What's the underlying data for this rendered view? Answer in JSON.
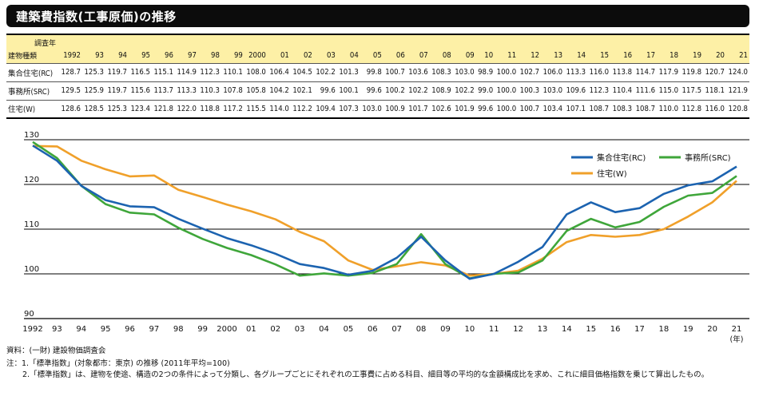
{
  "title": "建築費指数(工事原価)の推移",
  "table": {
    "corner_top": "調査年",
    "corner_bottom": "建物種類",
    "years": [
      "1992",
      "93",
      "94",
      "95",
      "96",
      "97",
      "98",
      "99",
      "2000",
      "01",
      "02",
      "03",
      "04",
      "05",
      "06",
      "07",
      "08",
      "09",
      "10",
      "11",
      "12",
      "13",
      "14",
      "15",
      "16",
      "17",
      "18",
      "19",
      "20",
      "21"
    ],
    "rows": [
      {
        "label": "集合住宅(RC)",
        "values": [
          "128.7",
          "125.3",
          "119.7",
          "116.5",
          "115.1",
          "114.9",
          "112.3",
          "110.1",
          "108.0",
          "106.4",
          "104.5",
          "102.2",
          "101.3",
          "99.8",
          "100.7",
          "103.6",
          "108.3",
          "103.0",
          "98.9",
          "100.0",
          "102.7",
          "106.0",
          "113.3",
          "116.0",
          "113.8",
          "114.7",
          "117.9",
          "119.8",
          "120.7",
          "124.0"
        ]
      },
      {
        "label": "事務所(SRC)",
        "values": [
          "129.5",
          "125.9",
          "119.7",
          "115.6",
          "113.7",
          "113.3",
          "110.3",
          "107.8",
          "105.8",
          "104.2",
          "102.1",
          "99.6",
          "100.1",
          "99.6",
          "100.2",
          "102.2",
          "108.9",
          "102.2",
          "99.0",
          "100.0",
          "100.3",
          "103.0",
          "109.6",
          "112.3",
          "110.4",
          "111.6",
          "115.0",
          "117.5",
          "118.1",
          "121.9"
        ]
      },
      {
        "label": "住宅(W)",
        "values": [
          "128.6",
          "128.5",
          "125.3",
          "123.4",
          "121.8",
          "122.0",
          "118.8",
          "117.2",
          "115.5",
          "114.0",
          "112.2",
          "109.4",
          "107.3",
          "103.0",
          "100.9",
          "101.7",
          "102.6",
          "101.9",
          "99.6",
          "100.0",
          "100.7",
          "103.4",
          "107.1",
          "108.7",
          "108.3",
          "108.7",
          "110.0",
          "112.8",
          "116.0",
          "120.8"
        ]
      }
    ]
  },
  "chart_data": {
    "type": "line",
    "categories": [
      "1992",
      "93",
      "94",
      "95",
      "96",
      "97",
      "98",
      "99",
      "2000",
      "01",
      "02",
      "03",
      "04",
      "05",
      "06",
      "07",
      "08",
      "09",
      "10",
      "11",
      "12",
      "13",
      "14",
      "15",
      "16",
      "17",
      "18",
      "19",
      "20",
      "21"
    ],
    "x_unit": "(年)",
    "ylim": [
      90,
      130
    ],
    "yticks": [
      "90",
      "100",
      "110",
      "120",
      "130"
    ],
    "grid": true,
    "legend_position": "top-right",
    "series": [
      {
        "name": "集合住宅(RC)",
        "color": "#1c63b0",
        "values": [
          128.7,
          125.3,
          119.7,
          116.5,
          115.1,
          114.9,
          112.3,
          110.1,
          108.0,
          106.4,
          104.5,
          102.2,
          101.3,
          99.8,
          100.7,
          103.6,
          108.3,
          103.0,
          98.9,
          100.0,
          102.7,
          106.0,
          113.3,
          116.0,
          113.8,
          114.7,
          117.9,
          119.8,
          120.7,
          124.0
        ]
      },
      {
        "name": "事務所(SRC)",
        "color": "#3fa63a",
        "values": [
          129.5,
          125.9,
          119.7,
          115.6,
          113.7,
          113.3,
          110.3,
          107.8,
          105.8,
          104.2,
          102.1,
          99.6,
          100.1,
          99.6,
          100.2,
          102.2,
          108.9,
          102.2,
          99.0,
          100.0,
          100.3,
          103.0,
          109.6,
          112.3,
          110.4,
          111.6,
          115.0,
          117.5,
          118.1,
          121.9
        ]
      },
      {
        "name": "住宅(W)",
        "color": "#f0a02a",
        "values": [
          128.6,
          128.5,
          125.3,
          123.4,
          121.8,
          122.0,
          118.8,
          117.2,
          115.5,
          114.0,
          112.2,
          109.4,
          107.3,
          103.0,
          100.9,
          101.7,
          102.6,
          101.9,
          99.6,
          100.0,
          100.7,
          103.4,
          107.1,
          108.7,
          108.3,
          108.7,
          110.0,
          112.8,
          116.0,
          120.8
        ]
      }
    ]
  },
  "notes": {
    "source": "資料：(一財) 建設物価調査会",
    "note1": "注：1.「標準指数」(対象都市：東京) の推移 (2011年平均=100)",
    "note2": "2.「標準指数」は、建物を使途、構造の2つの条件によって分類し、各グループごとにそれぞれの工事費に占める科目、細目等の平均的な金額構成比を求め、これに細目価格指数を乗じて算出したもの。"
  }
}
